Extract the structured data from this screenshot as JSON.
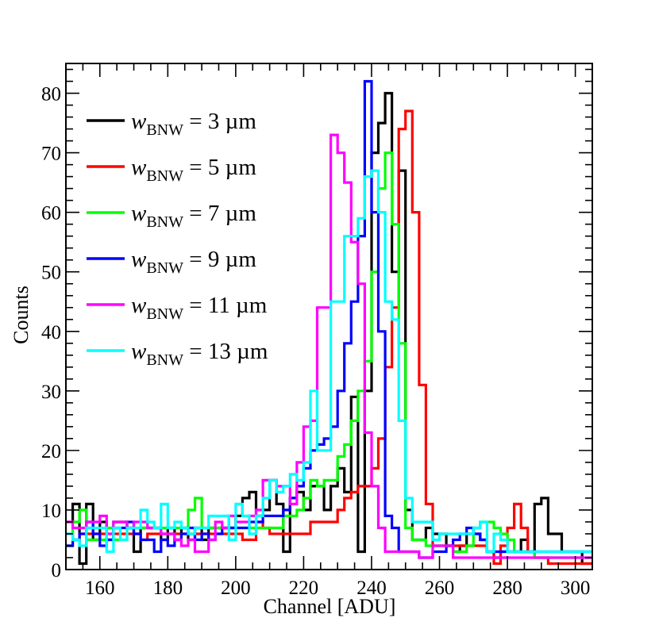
{
  "chart_data": {
    "type": "histogram",
    "title": "",
    "xlabel": "Channel [ADU]",
    "ylabel": "Counts",
    "xlim": [
      150,
      305
    ],
    "ylim": [
      0,
      85
    ],
    "x_ticks": [
      160,
      180,
      200,
      220,
      240,
      260,
      280,
      300
    ],
    "y_ticks": [
      0,
      10,
      20,
      30,
      40,
      50,
      60,
      70,
      80
    ],
    "bin_width": 2,
    "bin_start": 150,
    "legend_position": "top-left",
    "legend_symbol": "w",
    "legend_subscript": "BNW",
    "series": [
      {
        "name": "3 µm",
        "label_value": " = 3 µm",
        "color": "#000000",
        "values": [
          8,
          11,
          1,
          11,
          5,
          8,
          5,
          8,
          8,
          7,
          3,
          7,
          7,
          7,
          5,
          7,
          5,
          7,
          5,
          7,
          5,
          7,
          7,
          7,
          7,
          9,
          12,
          13,
          9,
          10,
          15,
          11,
          3,
          12,
          13,
          10,
          14,
          14,
          10,
          14,
          17,
          13,
          29,
          3,
          30,
          70,
          75,
          80,
          50,
          67,
          10,
          5,
          5,
          7,
          6,
          6,
          4,
          3,
          4,
          6,
          6,
          5,
          3,
          2,
          3,
          3,
          3,
          5,
          3,
          11,
          12,
          6,
          6,
          3,
          3,
          3,
          1,
          1
        ]
      },
      {
        "name": "5 µm",
        "label_value": " = 5 µm",
        "color": "#ff0000",
        "values": [
          6,
          5,
          6,
          6,
          6,
          6,
          6,
          6,
          6,
          6,
          6,
          5,
          6,
          6,
          6,
          6,
          6,
          6,
          6,
          6,
          6,
          6,
          6,
          6,
          6,
          6,
          5,
          5,
          8,
          7,
          6,
          6,
          6,
          6,
          6,
          6,
          8,
          8,
          8,
          8,
          10,
          12,
          13,
          14,
          14,
          17,
          22,
          34,
          44,
          74,
          77,
          60,
          31,
          11,
          4,
          4,
          4,
          4,
          4,
          4,
          4,
          4,
          3,
          1,
          4,
          7,
          11,
          7,
          3,
          2,
          2,
          1,
          1,
          1,
          1,
          1,
          1,
          1
        ]
      },
      {
        "name": "7 µm",
        "label_value": " = 7 µm",
        "color": "#00ff00",
        "values": [
          4,
          8,
          10,
          5,
          5,
          5,
          7,
          5,
          5,
          7,
          7,
          7,
          7,
          7,
          7,
          7,
          7,
          7,
          10,
          12,
          7,
          7,
          7,
          7,
          7,
          7,
          7,
          7,
          7,
          7,
          7,
          7,
          9,
          9,
          10,
          12,
          15,
          14,
          15,
          15,
          19,
          21,
          25,
          30,
          35,
          50,
          64,
          70,
          58,
          38,
          7,
          5,
          5,
          4,
          4,
          4,
          4,
          3,
          3,
          4,
          7,
          8,
          8,
          7,
          6,
          5,
          3,
          3,
          3,
          2,
          2,
          2,
          2,
          2,
          2,
          2,
          2,
          2
        ]
      },
      {
        "name": "9 µm",
        "label_value": " = 9 µm",
        "color": "#0000ff",
        "values": [
          4,
          5,
          6,
          8,
          6,
          4,
          5,
          7,
          7,
          8,
          6,
          5,
          5,
          3,
          5,
          4,
          5,
          6,
          7,
          5,
          6,
          5,
          6,
          7,
          7,
          7,
          7,
          8,
          8,
          9,
          9,
          9,
          10,
          12,
          14,
          17,
          20,
          21,
          22,
          24,
          30,
          38,
          45,
          56,
          82,
          60,
          40,
          9,
          7,
          3,
          3,
          3,
          2,
          2,
          3,
          3,
          4,
          5,
          6,
          7,
          6,
          5,
          3,
          3,
          3,
          3,
          3,
          3,
          3,
          3,
          3,
          3,
          3,
          3,
          3,
          3,
          3,
          3
        ]
      },
      {
        "name": "11 µm",
        "label_value": " = 11 µm",
        "color": "#ff00ff",
        "values": [
          8,
          7,
          7,
          8,
          8,
          9,
          6,
          8,
          8,
          7,
          8,
          8,
          7,
          7,
          6,
          6,
          5,
          4,
          5,
          3,
          3,
          5,
          8,
          7,
          9,
          8,
          8,
          9,
          10,
          15,
          15,
          14,
          14,
          11,
          18,
          24,
          25,
          44,
          44,
          73,
          70,
          65,
          55,
          48,
          23,
          14,
          7,
          3,
          3,
          3,
          3,
          3,
          2,
          2,
          4,
          4,
          4,
          2,
          2,
          2,
          2,
          2,
          2,
          2,
          2,
          2,
          2,
          2,
          2,
          2,
          2,
          2,
          2,
          2,
          2,
          2,
          2,
          2
        ]
      },
      {
        "name": "13 µm",
        "label_value": " = 13 µm",
        "color": "#00ffff",
        "values": [
          6,
          5,
          4,
          7,
          7,
          7,
          3,
          7,
          5,
          7,
          7,
          10,
          8,
          7,
          11,
          7,
          8,
          7,
          6,
          7,
          7,
          9,
          9,
          9,
          5,
          11,
          9,
          6,
          9,
          12,
          15,
          13,
          14,
          16,
          15,
          18,
          30,
          20,
          20,
          45,
          45,
          56,
          56,
          59,
          66,
          67,
          60,
          45,
          42,
          25,
          12,
          8,
          8,
          8,
          5,
          6,
          6,
          6,
          6,
          6,
          7,
          8,
          3,
          6,
          5,
          3,
          3,
          3,
          3,
          3,
          3,
          3,
          3,
          3,
          3,
          3,
          3,
          3
        ]
      }
    ]
  }
}
